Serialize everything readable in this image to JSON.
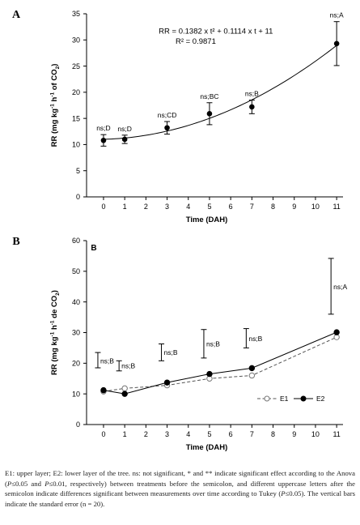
{
  "chart_data": [
    {
      "panel_letter": "A",
      "type": "scatter",
      "xlabel": "Time (DAH)",
      "ylabel": "RR (mg kg-1 h-1 of CO2)",
      "ylabel_parts": {
        "pre": "RR (mg kg",
        "sup1": "-1",
        "mid": " h",
        "sup2": "-1",
        "post_pre": " of CO",
        "sub": "2",
        "post": ")"
      },
      "xlim": [
        -0.8,
        11.3
      ],
      "ylim": [
        0,
        35
      ],
      "xticks": [
        "0",
        "1",
        "2",
        "3",
        "4",
        "5",
        "6",
        "7",
        "8",
        "9",
        "10",
        "11"
      ],
      "yticks": [
        "0",
        "5",
        "10",
        "15",
        "20",
        "25",
        "30",
        "35"
      ],
      "grid": false,
      "equation_lines": [
        "RR = 0.1382 x t² + 0.1114 x t + 11",
        "R² = 0.9871"
      ],
      "fit": {
        "a": 0.1382,
        "b": 0.1114,
        "c": 11
      },
      "series": [
        {
          "x": [
            0,
            1,
            3,
            5,
            7,
            11
          ],
          "y": [
            10.8,
            11.0,
            13.2,
            15.9,
            17.2,
            29.3
          ],
          "err": [
            1.1,
            0.8,
            1.2,
            2.1,
            1.3,
            4.2
          ],
          "labels": [
            "ns;D",
            "ns;D",
            "ns;CD",
            "ns;BC",
            "ns;B",
            "ns;A"
          ]
        }
      ]
    },
    {
      "panel_letter": "B",
      "inner_letter": "B",
      "type": "line",
      "xlabel": "Time (DAH)",
      "ylabel": "RR (mg kg-1 h-1 de CO2)",
      "ylabel_parts": {
        "pre": "RR (mg kg",
        "sup1": "-1",
        "mid": " h",
        "sup2": "-1",
        "post_pre": " de CO",
        "sub": "2",
        "post": ")"
      },
      "xlim": [
        -0.8,
        11.3
      ],
      "ylim": [
        0,
        60
      ],
      "xticks": [
        "0",
        "1",
        "2",
        "3",
        "4",
        "5",
        "6",
        "7",
        "8",
        "9",
        "10",
        "11"
      ],
      "yticks": [
        "0",
        "10",
        "20",
        "30",
        "40",
        "50",
        "60"
      ],
      "grid": false,
      "legend_position": "bottom-right",
      "x": [
        0,
        1,
        3,
        5,
        7,
        11
      ],
      "series": [
        {
          "name": "E1",
          "values": [
            10.8,
            11.8,
            12.8,
            15.0,
            16.0,
            28.5
          ],
          "marker": "open-circle",
          "dash": "dashed"
        },
        {
          "name": "E2",
          "values": [
            11.2,
            10.0,
            13.7,
            16.5,
            18.4,
            30.1
          ],
          "marker": "filled-circle",
          "dash": "solid"
        }
      ],
      "error_bars": [
        {
          "x": 0,
          "low": 18.5,
          "high": 23.5
        },
        {
          "x": 1,
          "low": 17.5,
          "high": 20.8
        },
        {
          "x": 3,
          "low": 20.8,
          "high": 26.3
        },
        {
          "x": 5,
          "low": 21.7,
          "high": 31.0
        },
        {
          "x": 7,
          "low": 25.0,
          "high": 31.3
        },
        {
          "x": 11,
          "low": 36.0,
          "high": 54.2
        }
      ],
      "labels": [
        {
          "x": 0,
          "y": 20.8,
          "text": "ns;B"
        },
        {
          "x": 1,
          "y": 19.2,
          "text": "ns;B"
        },
        {
          "x": 3,
          "y": 23.5,
          "text": "ns;B"
        },
        {
          "x": 5,
          "y": 26.3,
          "text": "ns;B"
        },
        {
          "x": 7,
          "y": 28.0,
          "text": "ns;B"
        },
        {
          "x": 11,
          "y": 45.0,
          "text": "ns;A"
        }
      ]
    }
  ],
  "caption": {
    "p1": "E1: upper layer; E2: lower layer of the tree. ns: not significant, * and ** indicate significant effect according to the Anova (",
    "i1": "P",
    "p2": "≤0.05 and ",
    "i2": "P",
    "p3": "≤0.01, respectively) between treatments before the semicolon, and different uppercase letters after the semicolon indicate differences significant between measurements over time according to Tukey (",
    "i3": "P",
    "p4": "≤0.05). The vertical bars indicate the standard error (n = 20)."
  }
}
